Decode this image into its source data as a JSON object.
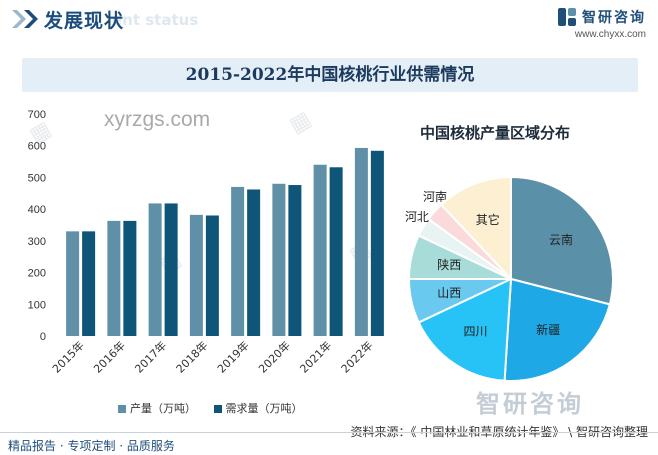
{
  "header": {
    "title": "发展现状",
    "subtitle_en": "ent status",
    "brand_name": "智研咨询",
    "brand_url": "www.chyxx.com"
  },
  "watermark_text": "xyrzgs.com",
  "bottom_logo": "智研咨询",
  "footer": {
    "left": "精品报告 · 专项定制 · 品质服务",
    "right": "资料来源：《 中国林业和草原统计年鉴》 \\ 智研咨询整理"
  },
  "chart_data": [
    {
      "type": "bar",
      "title": "2015-2022年中国核桃行业供需情况",
      "categories": [
        "2015年",
        "2016年",
        "2017年",
        "2018年",
        "2019年",
        "2020年",
        "2021年",
        "2022年"
      ],
      "series": [
        {
          "name": "产量（万吨）",
          "color": "#5f90a8",
          "values": [
            330,
            363,
            418,
            382,
            470,
            480,
            540,
            593
          ]
        },
        {
          "name": "需求量（万吨）",
          "color": "#0e5577",
          "values": [
            330,
            363,
            418,
            380,
            462,
            476,
            532,
            584
          ]
        }
      ],
      "yticks": [
        0,
        100,
        200,
        300,
        400,
        500,
        600,
        700
      ],
      "ylim": [
        0,
        700
      ],
      "grid": false,
      "legend": "bottom"
    },
    {
      "type": "pie",
      "title": "中国核桃产量区域分布",
      "slices": [
        {
          "label": "云南",
          "value": 29,
          "color": "#5b91a8"
        },
        {
          "label": "新疆",
          "value": 22,
          "color": "#1ea8e6"
        },
        {
          "label": "四川",
          "value": 17,
          "color": "#27c2f6"
        },
        {
          "label": "山西",
          "value": 7,
          "color": "#69c9ef"
        },
        {
          "label": "陕西",
          "value": 7,
          "color": "#a8dcd8"
        },
        {
          "label": "河北",
          "value": 3,
          "color": "#e8f4f3"
        },
        {
          "label": "河南",
          "value": 3,
          "color": "#fbdadb"
        },
        {
          "label": "其它",
          "value": 12,
          "color": "#fdf0d2"
        }
      ]
    }
  ]
}
